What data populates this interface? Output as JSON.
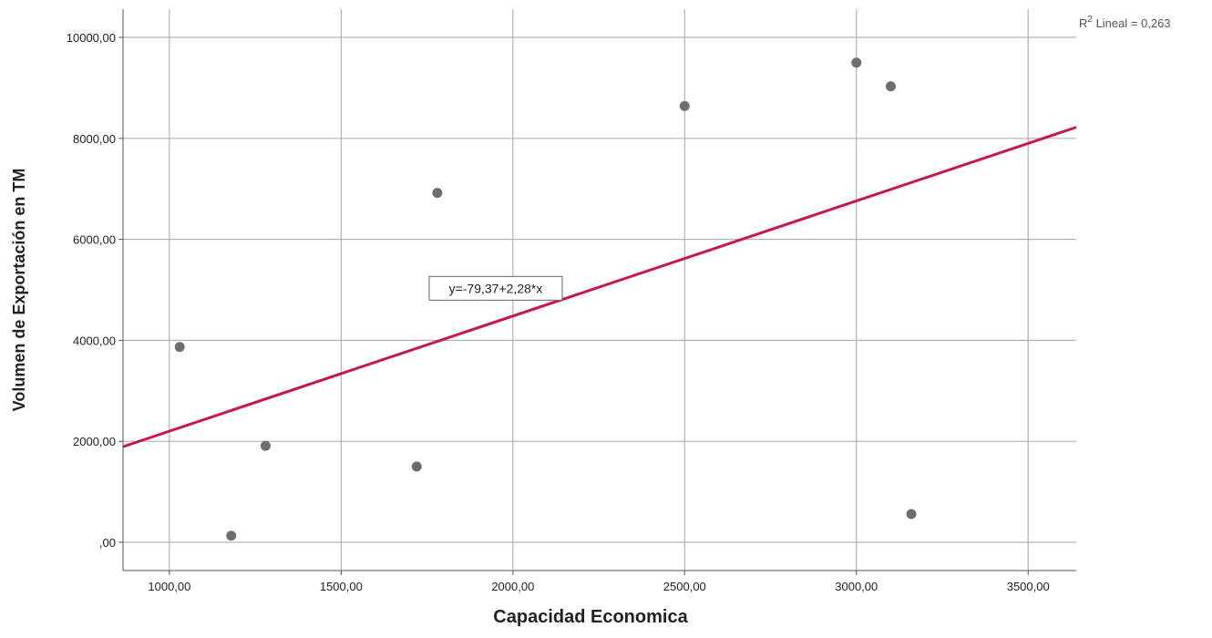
{
  "chart_data": {
    "type": "scatter",
    "xlabel": "Capacidad Economica",
    "ylabel": "Volumen de Exportación en TM",
    "xlim": [
      865,
      3640
    ],
    "ylim": [
      -560,
      10560
    ],
    "xticks": [
      {
        "value": 1000,
        "label": "1000,00"
      },
      {
        "value": 1500,
        "label": "1500,00"
      },
      {
        "value": 2000,
        "label": "2000,00"
      },
      {
        "value": 2500,
        "label": "2500,00"
      },
      {
        "value": 3000,
        "label": "3000,00"
      },
      {
        "value": 3500,
        "label": "3500,00"
      }
    ],
    "yticks": [
      {
        "value": 0,
        "label": ",00"
      },
      {
        "value": 2000,
        "label": "2000,00"
      },
      {
        "value": 4000,
        "label": "4000,00"
      },
      {
        "value": 6000,
        "label": "6000,00"
      },
      {
        "value": 8000,
        "label": "8000,00"
      },
      {
        "value": 10000,
        "label": "10000,00"
      }
    ],
    "grid": true,
    "points": [
      {
        "x": 1030,
        "y": 3870
      },
      {
        "x": 1180,
        "y": 130
      },
      {
        "x": 1280,
        "y": 1910
      },
      {
        "x": 1720,
        "y": 1500
      },
      {
        "x": 1780,
        "y": 6920
      },
      {
        "x": 2500,
        "y": 8640
      },
      {
        "x": 3000,
        "y": 9500
      },
      {
        "x": 3100,
        "y": 9030
      },
      {
        "x": 3160,
        "y": 560
      }
    ],
    "fit_line": {
      "intercept": -79.37,
      "slope": 2.28,
      "label": "y=-79,37+2,28*x",
      "label_anchor": {
        "x": 1950,
        "y": 5030
      },
      "color": "#c8174a"
    },
    "r2_label": {
      "base": "R",
      "sup": "2",
      "rest": " Lineal = 0,263"
    },
    "colors": {
      "points": "#6e6e6e",
      "grid": "#b3b3b3",
      "axis": "#555555",
      "text": "#222222"
    }
  }
}
